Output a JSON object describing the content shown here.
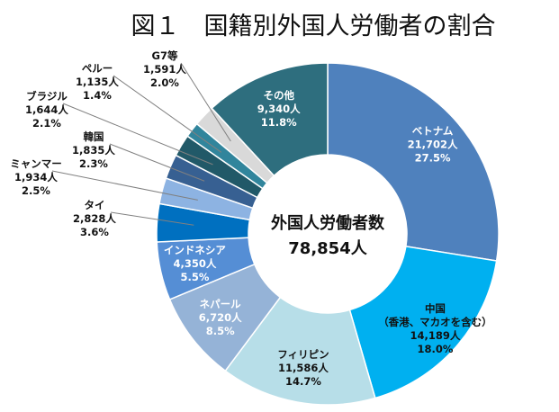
{
  "chart_data": {
    "type": "pie",
    "title": "図１　国籍別外国人労働者の割合",
    "center": {
      "label": "外国人労働者数",
      "value": "78,854人"
    },
    "slices": [
      {
        "name": "ベトナム",
        "count": "21,702人",
        "pct": "27.5%",
        "value": 21702,
        "color": "#4f81bd",
        "label_color": "#ffffff"
      },
      {
        "name": "中国",
        "note": "（香港、マカオを含む）",
        "count": "14,189人",
        "pct": "18.0%",
        "value": 14189,
        "color": "#00b0f0",
        "label_color": "#111111"
      },
      {
        "name": "フィリピン",
        "count": "11,586人",
        "pct": "14.7%",
        "value": 11586,
        "color": "#b7dee8",
        "label_color": "#111111"
      },
      {
        "name": "ネパール",
        "count": "6,720人",
        "pct": "8.5%",
        "value": 6720,
        "color": "#95b3d7",
        "label_color": "#ffffff"
      },
      {
        "name": "インドネシア",
        "count": "4,350人",
        "pct": "5.5%",
        "value": 4350,
        "color": "#558ed5",
        "label_color": "#ffffff"
      },
      {
        "name": "タイ",
        "count": "2,828人",
        "pct": "3.6%",
        "value": 2828,
        "color": "#0070c0",
        "label_color": "#111111"
      },
      {
        "name": "ミャンマー",
        "count": "1,934人",
        "pct": "2.5%",
        "value": 1934,
        "color": "#8db3e2",
        "label_color": "#111111"
      },
      {
        "name": "韓国",
        "count": "1,835人",
        "pct": "2.3%",
        "value": 1835,
        "color": "#376092",
        "label_color": "#111111"
      },
      {
        "name": "ブラジル",
        "count": "1,644人",
        "pct": "2.1%",
        "value": 1644,
        "color": "#215968",
        "label_color": "#111111"
      },
      {
        "name": "ペルー",
        "count": "1,135人",
        "pct": "1.4%",
        "value": 1135,
        "color": "#31859c",
        "label_color": "#111111"
      },
      {
        "name": "G7等",
        "count": "1,591人",
        "pct": "2.0%",
        "value": 1591,
        "color": "#d9d9d9",
        "label_color": "#111111"
      },
      {
        "name": "その他",
        "count": "9,340人",
        "pct": "11.8%",
        "value": 9340,
        "color": "#2e6e7e",
        "label_color": "#ffffff"
      }
    ],
    "legend": "none"
  }
}
